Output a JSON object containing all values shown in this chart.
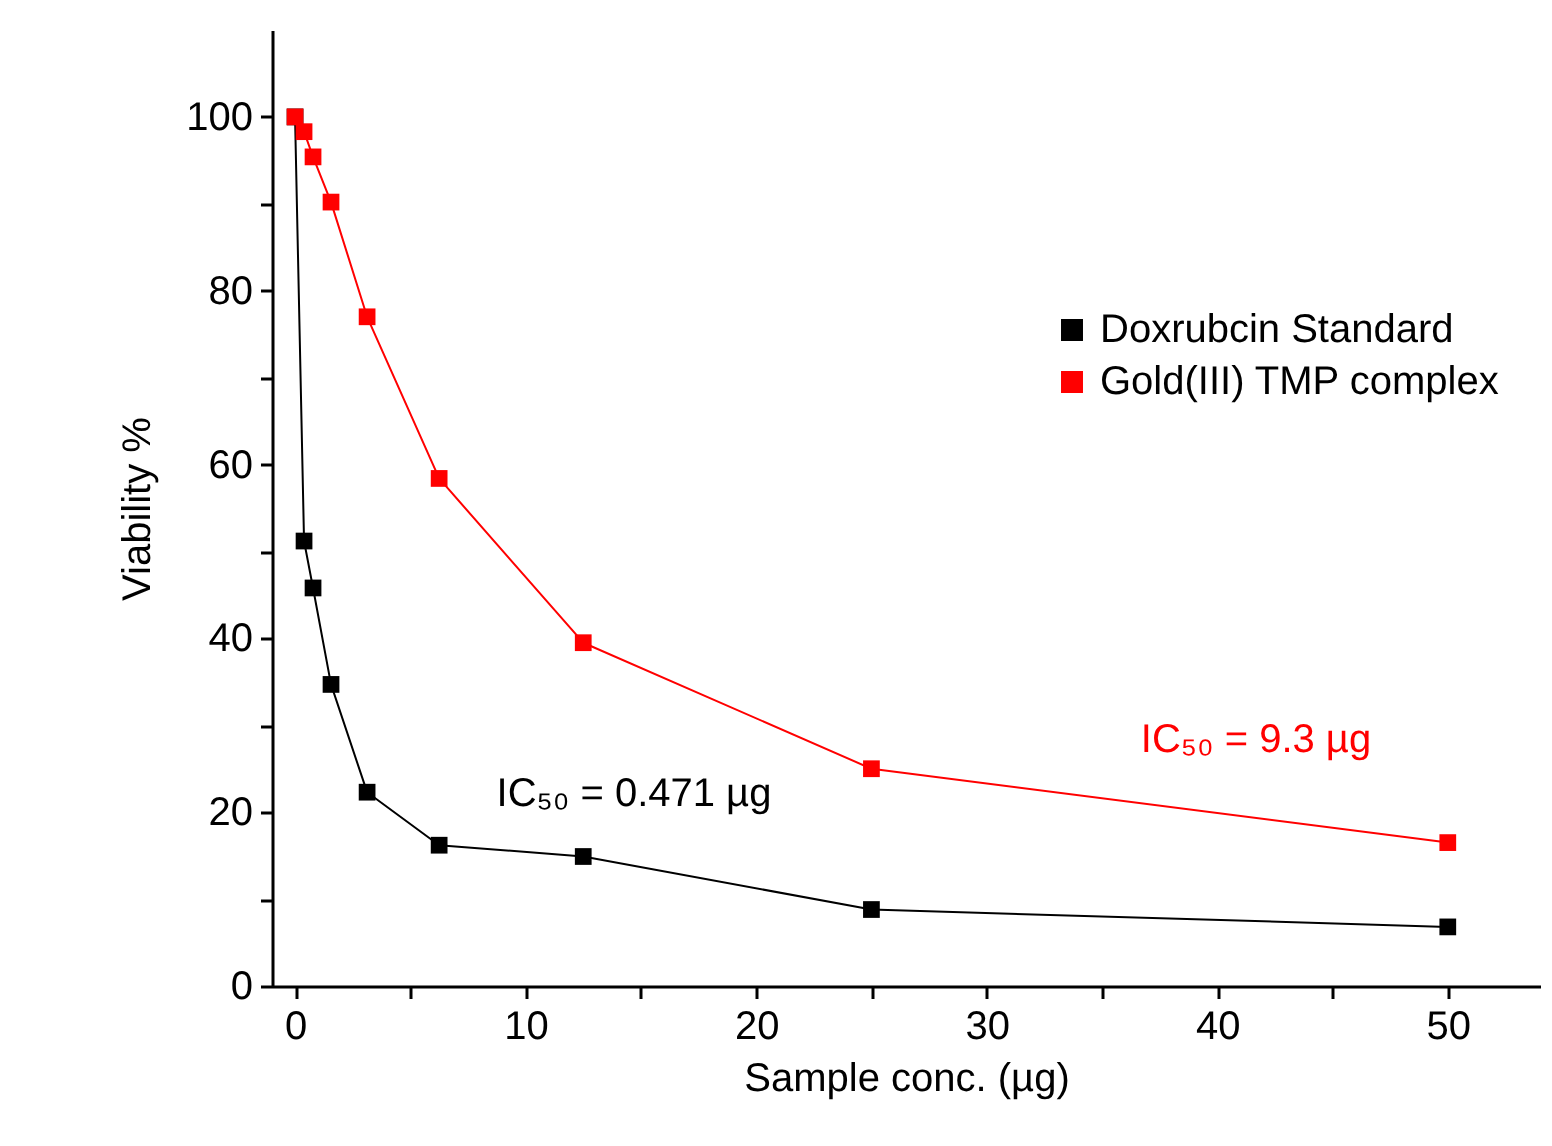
{
  "chart_data": {
    "type": "line",
    "xlabel": "Sample conc. (µg)",
    "ylabel": "Viability %",
    "x": [
      0,
      0.39,
      0.78,
      1.56,
      3.125,
      6.25,
      12.5,
      25,
      50
    ],
    "series": [
      {
        "name": "Doxrubcin Standard",
        "color": "#000000",
        "values": [
          100,
          51.2,
          45.8,
          34.7,
          22.3,
          16.2,
          14.9,
          8.8,
          6.8
        ]
      },
      {
        "name": "Gold(III) TMP complex",
        "color": "#ff0000",
        "values": [
          100,
          98.3,
          95.4,
          90.2,
          77,
          58.4,
          39.5,
          25,
          16.5
        ]
      }
    ],
    "annotations": [
      "IC₅₀ = 0.471 µg",
      "IC₅₀ =  9.3 µg"
    ],
    "xlim": [
      -1,
      54
    ],
    "xticks": [
      0,
      {
        "value": 5,
        "label": null
      },
      10,
      {
        "value": 15,
        "label": null
      },
      20,
      {
        "value": 25,
        "label": null
      },
      30,
      {
        "value": 35,
        "label": null
      },
      40,
      {
        "value": 45,
        "label": null
      },
      50
    ],
    "ylim": [
      0,
      110
    ],
    "yticks": [
      0,
      {
        "value": 10,
        "label": null
      },
      20,
      {
        "value": 30,
        "label": null
      },
      40,
      {
        "value": 50,
        "label": null
      },
      60,
      {
        "value": 70,
        "label": null
      },
      80,
      {
        "value": 90,
        "label": null
      },
      100
    ],
    "marker": "square",
    "line_style": "solid",
    "grid": false,
    "legend": "top right"
  }
}
